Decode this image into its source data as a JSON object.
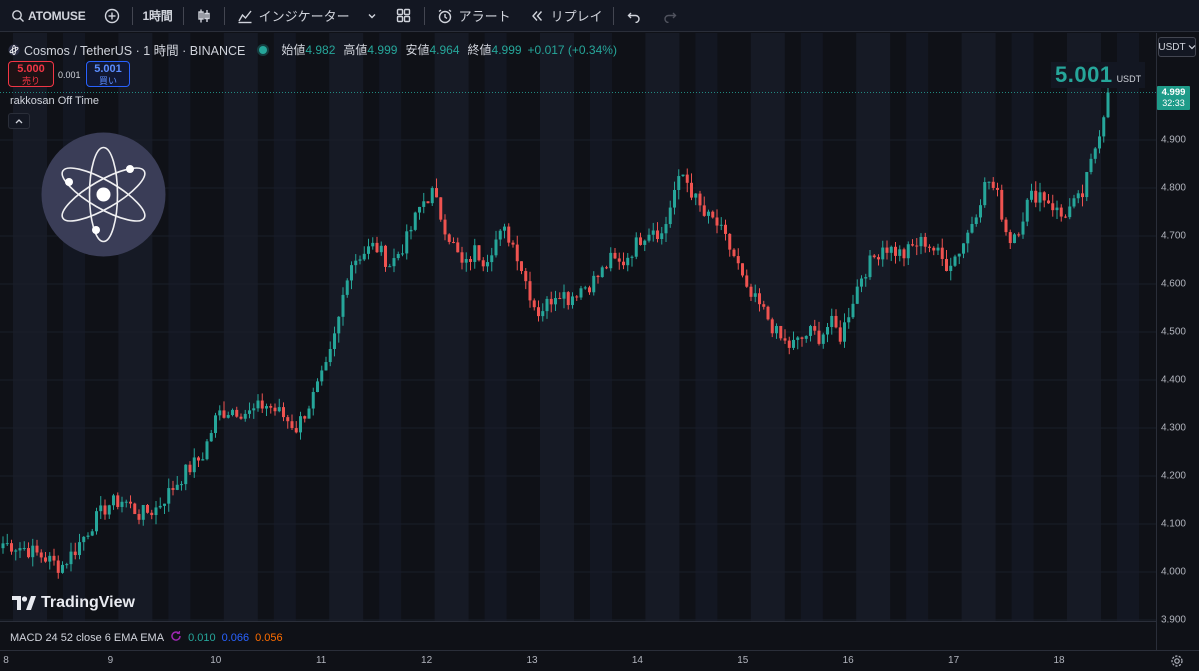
{
  "toolbar": {
    "symbol": "ATOMUSE",
    "interval": "1時間",
    "indicators": "インジケーター",
    "alert": "アラート",
    "replay": "リプレイ"
  },
  "legend": {
    "title": "Cosmos / TetherUS · 1 時間 · BINANCE",
    "open_label": "始値",
    "open": "4.982",
    "high_label": "高値",
    "high": "4.999",
    "low_label": "安値",
    "low": "4.964",
    "close_label": "終値",
    "close": "4.999",
    "change": "+0.017 (+0.34%)"
  },
  "trade": {
    "sell_price": "5.000",
    "sell_label": "売り",
    "spread": "0.001",
    "buy_price": "5.001",
    "buy_label": "買い"
  },
  "indicator_label": "rakkosan Off Time",
  "big_price": {
    "value": "5.001",
    "unit": "USDT"
  },
  "price_axis": {
    "currency": "USDT",
    "ticks": [
      "4.900",
      "4.800",
      "4.700",
      "4.600",
      "4.500",
      "4.400",
      "4.300",
      "4.200",
      "4.100",
      "4.000",
      "3.900"
    ],
    "last_price": "4.999",
    "countdown": "32:33"
  },
  "time_axis": {
    "ticks": [
      "8",
      "9",
      "10",
      "11",
      "12",
      "13",
      "14",
      "15",
      "16",
      "17",
      "18"
    ]
  },
  "macd": {
    "label": "MACD 24 52 close 6 EMA EMA",
    "v1": "0.010",
    "v2": "0.066",
    "v3": "0.056"
  },
  "brand": "TradingView",
  "colors": {
    "up": "#26a69a",
    "down": "#ef5350",
    "bg": "#0f1117",
    "band": "#161a25"
  },
  "chart_data": {
    "type": "candlestick",
    "ylim": [
      3.9,
      4.99
    ],
    "days": [
      "8",
      "9",
      "10",
      "11",
      "12",
      "13",
      "14",
      "15",
      "16",
      "17",
      "18"
    ],
    "close_path": [
      [
        0,
        4.06
      ],
      [
        4,
        4.05
      ],
      [
        8,
        4.03
      ],
      [
        11,
        4.01
      ],
      [
        14,
        4.05
      ],
      [
        17,
        4.1
      ],
      [
        20,
        4.14
      ],
      [
        23,
        4.15
      ],
      [
        26,
        4.12
      ],
      [
        29,
        4.13
      ],
      [
        32,
        4.17
      ],
      [
        35,
        4.21
      ],
      [
        38,
        4.24
      ],
      [
        41,
        4.33
      ],
      [
        44,
        4.34
      ],
      [
        47,
        4.33
      ],
      [
        50,
        4.35
      ],
      [
        53,
        4.33
      ],
      [
        56,
        4.3
      ],
      [
        59,
        4.36
      ],
      [
        62,
        4.43
      ],
      [
        64,
        4.52
      ],
      [
        66,
        4.64
      ],
      [
        68,
        4.66
      ],
      [
        71,
        4.68
      ],
      [
        74,
        4.64
      ],
      [
        77,
        4.69
      ],
      [
        80,
        4.77
      ],
      [
        82,
        4.79
      ],
      [
        84,
        4.73
      ],
      [
        86,
        4.68
      ],
      [
        88,
        4.63
      ],
      [
        90,
        4.67
      ],
      [
        92,
        4.65
      ],
      [
        94,
        4.69
      ],
      [
        96,
        4.71
      ],
      [
        98,
        4.67
      ],
      [
        100,
        4.6
      ],
      [
        102,
        4.54
      ],
      [
        104,
        4.56
      ],
      [
        106,
        4.59
      ],
      [
        108,
        4.57
      ],
      [
        110,
        4.59
      ],
      [
        112,
        4.6
      ],
      [
        114,
        4.62
      ],
      [
        116,
        4.65
      ],
      [
        118,
        4.64
      ],
      [
        120,
        4.67
      ],
      [
        122,
        4.7
      ],
      [
        124,
        4.72
      ],
      [
        126,
        4.7
      ],
      [
        128,
        4.79
      ],
      [
        130,
        4.83
      ],
      [
        132,
        4.78
      ],
      [
        134,
        4.74
      ],
      [
        136,
        4.73
      ],
      [
        138,
        4.69
      ],
      [
        140,
        4.65
      ],
      [
        142,
        4.58
      ],
      [
        144,
        4.56
      ],
      [
        146,
        4.53
      ],
      [
        148,
        4.49
      ],
      [
        150,
        4.47
      ],
      [
        152,
        4.48
      ],
      [
        154,
        4.5
      ],
      [
        156,
        4.49
      ],
      [
        158,
        4.52
      ],
      [
        160,
        4.49
      ],
      [
        162,
        4.56
      ],
      [
        164,
        4.62
      ],
      [
        166,
        4.65
      ],
      [
        168,
        4.68
      ],
      [
        170,
        4.67
      ],
      [
        172,
        4.66
      ],
      [
        174,
        4.68
      ],
      [
        176,
        4.69
      ],
      [
        178,
        4.67
      ],
      [
        180,
        4.64
      ],
      [
        182,
        4.66
      ],
      [
        184,
        4.7
      ],
      [
        186,
        4.76
      ],
      [
        188,
        4.82
      ],
      [
        190,
        4.78
      ],
      [
        192,
        4.69
      ],
      [
        194,
        4.72
      ],
      [
        196,
        4.78
      ],
      [
        198,
        4.79
      ],
      [
        200,
        4.77
      ],
      [
        202,
        4.74
      ],
      [
        204,
        4.76
      ],
      [
        206,
        4.78
      ],
      [
        208,
        4.86
      ],
      [
        210,
        4.95
      ],
      [
        211,
        4.99
      ]
    ]
  }
}
